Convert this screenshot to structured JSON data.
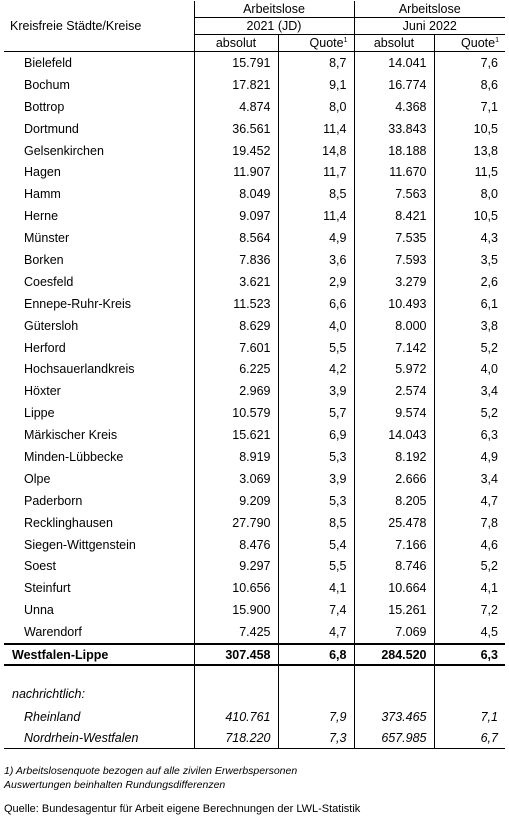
{
  "header": {
    "region_label": "Kreisfreie Städte/Kreise",
    "group1": "Arbeitslose",
    "group1_period": "2021 (JD)",
    "group2": "Arbeitslose",
    "group2_period": "Juni 2022",
    "col_absolut": "absolut",
    "col_quote": "Quote",
    "quote_footnote_mark": "1"
  },
  "rows": [
    {
      "name": "Bielefeld",
      "abs2021": "15.791",
      "q2021": "8,7",
      "abs2022": "14.041",
      "q2022": "7,6"
    },
    {
      "name": "Bochum",
      "abs2021": "17.821",
      "q2021": "9,1",
      "abs2022": "16.774",
      "q2022": "8,6"
    },
    {
      "name": "Bottrop",
      "abs2021": "4.874",
      "q2021": "8,0",
      "abs2022": "4.368",
      "q2022": "7,1"
    },
    {
      "name": "Dortmund",
      "abs2021": "36.561",
      "q2021": "11,4",
      "abs2022": "33.843",
      "q2022": "10,5"
    },
    {
      "name": "Gelsenkirchen",
      "abs2021": "19.452",
      "q2021": "14,8",
      "abs2022": "18.188",
      "q2022": "13,8"
    },
    {
      "name": "Hagen",
      "abs2021": "11.907",
      "q2021": "11,7",
      "abs2022": "11.670",
      "q2022": "11,5"
    },
    {
      "name": "Hamm",
      "abs2021": "8.049",
      "q2021": "8,5",
      "abs2022": "7.563",
      "q2022": "8,0"
    },
    {
      "name": "Herne",
      "abs2021": "9.097",
      "q2021": "11,4",
      "abs2022": "8.421",
      "q2022": "10,5"
    },
    {
      "name": "Münster",
      "abs2021": "8.564",
      "q2021": "4,9",
      "abs2022": "7.535",
      "q2022": "4,3"
    },
    {
      "name": "Borken",
      "abs2021": "7.836",
      "q2021": "3,6",
      "abs2022": "7.593",
      "q2022": "3,5"
    },
    {
      "name": "Coesfeld",
      "abs2021": "3.621",
      "q2021": "2,9",
      "abs2022": "3.279",
      "q2022": "2,6"
    },
    {
      "name": "Ennepe-Ruhr-Kreis",
      "abs2021": "11.523",
      "q2021": "6,6",
      "abs2022": "10.493",
      "q2022": "6,1"
    },
    {
      "name": "Gütersloh",
      "abs2021": "8.629",
      "q2021": "4,0",
      "abs2022": "8.000",
      "q2022": "3,8"
    },
    {
      "name": "Herford",
      "abs2021": "7.601",
      "q2021": "5,5",
      "abs2022": "7.142",
      "q2022": "5,2"
    },
    {
      "name": "Hochsauerlandkreis",
      "abs2021": "6.225",
      "q2021": "4,2",
      "abs2022": "5.972",
      "q2022": "4,0"
    },
    {
      "name": "Höxter",
      "abs2021": "2.969",
      "q2021": "3,9",
      "abs2022": "2.574",
      "q2022": "3,4"
    },
    {
      "name": "Lippe",
      "abs2021": "10.579",
      "q2021": "5,7",
      "abs2022": "9.574",
      "q2022": "5,2"
    },
    {
      "name": "Märkischer Kreis",
      "abs2021": "15.621",
      "q2021": "6,9",
      "abs2022": "14.043",
      "q2022": "6,3"
    },
    {
      "name": "Minden-Lübbecke",
      "abs2021": "8.919",
      "q2021": "5,3",
      "abs2022": "8.192",
      "q2022": "4,9"
    },
    {
      "name": "Olpe",
      "abs2021": "3.069",
      "q2021": "3,9",
      "abs2022": "2.666",
      "q2022": "3,4"
    },
    {
      "name": "Paderborn",
      "abs2021": "9.209",
      "q2021": "5,3",
      "abs2022": "8.205",
      "q2022": "4,7"
    },
    {
      "name": "Recklinghausen",
      "abs2021": "27.790",
      "q2021": "8,5",
      "abs2022": "25.478",
      "q2022": "7,8"
    },
    {
      "name": "Siegen-Wittgenstein",
      "abs2021": "8.476",
      "q2021": "5,4",
      "abs2022": "7.166",
      "q2022": "4,6"
    },
    {
      "name": "Soest",
      "abs2021": "9.297",
      "q2021": "5,5",
      "abs2022": "8.746",
      "q2022": "5,2"
    },
    {
      "name": "Steinfurt",
      "abs2021": "10.656",
      "q2021": "4,1",
      "abs2022": "10.664",
      "q2022": "4,1"
    },
    {
      "name": "Unna",
      "abs2021": "15.900",
      "q2021": "7,4",
      "abs2022": "15.261",
      "q2022": "7,2"
    },
    {
      "name": "Warendorf",
      "abs2021": "7.425",
      "q2021": "4,7",
      "abs2022": "7.069",
      "q2022": "4,5"
    }
  ],
  "total": {
    "name": "Westfalen-Lippe",
    "abs2021": "307.458",
    "q2021": "6,8",
    "abs2022": "284.520",
    "q2022": "6,3"
  },
  "nachrichtlich": {
    "label": "nachrichtlich:",
    "rows": [
      {
        "name": "Rheinland",
        "abs2021": "410.761",
        "q2021": "7,9",
        "abs2022": "373.465",
        "q2022": "7,1"
      },
      {
        "name": "Nordrhein-Westfalen",
        "abs2021": "718.220",
        "q2021": "7,3",
        "abs2022": "657.985",
        "q2022": "6,7"
      }
    ]
  },
  "notes": {
    "footnote1": "1) Arbeitslosenquote bezogen auf alle zivilen Erwerbspersonen",
    "footnote2": "Auswertungen beinhalten Rundungsdifferenzen",
    "source": "Quelle: Bundesagentur für Arbeit eigene Berechnungen der LWL-Statistik"
  }
}
